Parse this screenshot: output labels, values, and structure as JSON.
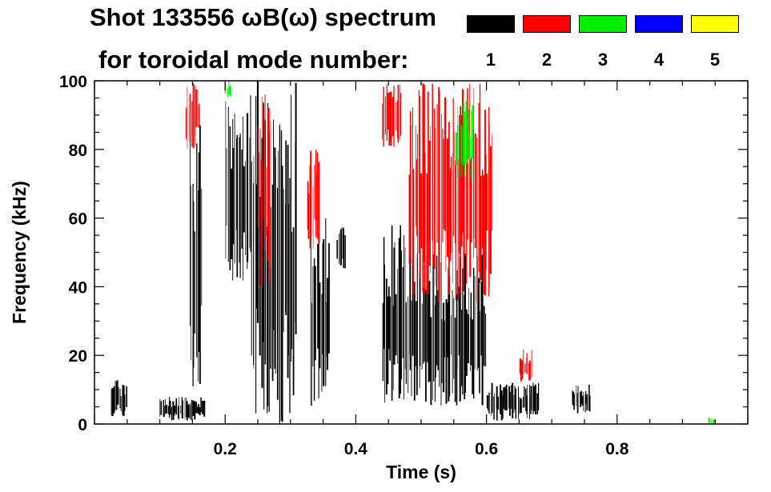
{
  "header": {
    "title": "Shot 133556 ωB(ω) spectrum",
    "subtitle": "for toroidal mode number:"
  },
  "legend": [
    {
      "label": "1",
      "color": "#000000"
    },
    {
      "label": "2",
      "color": "#ff0000"
    },
    {
      "label": "3",
      "color": "#00ee00"
    },
    {
      "label": "4",
      "color": "#0000ff"
    },
    {
      "label": "5",
      "color": "#ffff00"
    }
  ],
  "chart_data": {
    "type": "heatmap",
    "xlabel": "Time (s)",
    "ylabel": "Frequency (kHz)",
    "xlim": [
      0.0,
      1.0
    ],
    "ylim": [
      0,
      100
    ],
    "xticks": [
      0.2,
      0.4,
      0.6,
      0.8
    ],
    "xtick_labels": [
      "0.2",
      "0.4",
      "0.6",
      "0.8"
    ],
    "yticks": [
      0,
      20,
      40,
      60,
      80,
      100
    ],
    "ytick_labels": [
      "0",
      "20",
      "40",
      "60",
      "80",
      "100"
    ],
    "grid": false,
    "regions": [
      {
        "mode": 1,
        "t": [
          0.025,
          0.05
        ],
        "f": [
          2,
          13
        ]
      },
      {
        "mode": 1,
        "t": [
          0.1,
          0.17
        ],
        "f": [
          1,
          8
        ]
      },
      {
        "mode": 1,
        "t": [
          0.145,
          0.165
        ],
        "f": [
          10,
          88
        ]
      },
      {
        "mode": 1,
        "t": [
          0.2,
          0.24
        ],
        "f": [
          40,
          100
        ]
      },
      {
        "mode": 1,
        "t": [
          0.24,
          0.31
        ],
        "f": [
          0,
          100
        ]
      },
      {
        "mode": 1,
        "t": [
          0.33,
          0.36
        ],
        "f": [
          5,
          60
        ]
      },
      {
        "mode": 1,
        "t": [
          0.37,
          0.385
        ],
        "f": [
          45,
          58
        ]
      },
      {
        "mode": 1,
        "t": [
          0.44,
          0.5
        ],
        "f": [
          5,
          58
        ]
      },
      {
        "mode": 1,
        "t": [
          0.5,
          0.6
        ],
        "f": [
          5,
          50
        ]
      },
      {
        "mode": 1,
        "t": [
          0.6,
          0.68
        ],
        "f": [
          1,
          12
        ]
      },
      {
        "mode": 1,
        "t": [
          0.73,
          0.76
        ],
        "f": [
          3,
          12
        ]
      },
      {
        "mode": 2,
        "t": [
          0.14,
          0.16
        ],
        "f": [
          80,
          100
        ]
      },
      {
        "mode": 2,
        "t": [
          0.25,
          0.27
        ],
        "f": [
          40,
          100
        ]
      },
      {
        "mode": 2,
        "t": [
          0.325,
          0.345
        ],
        "f": [
          50,
          80
        ]
      },
      {
        "mode": 2,
        "t": [
          0.44,
          0.47
        ],
        "f": [
          80,
          100
        ]
      },
      {
        "mode": 2,
        "t": [
          0.48,
          0.61
        ],
        "f": [
          35,
          100
        ]
      },
      {
        "mode": 2,
        "t": [
          0.65,
          0.67
        ],
        "f": [
          12,
          22
        ]
      },
      {
        "mode": 3,
        "t": [
          0.2,
          0.21
        ],
        "f": [
          95,
          100
        ]
      },
      {
        "mode": 3,
        "t": [
          0.55,
          0.58
        ],
        "f": [
          70,
          95
        ]
      },
      {
        "mode": 3,
        "t": [
          0.94,
          0.95
        ],
        "f": [
          0,
          2
        ]
      }
    ]
  }
}
